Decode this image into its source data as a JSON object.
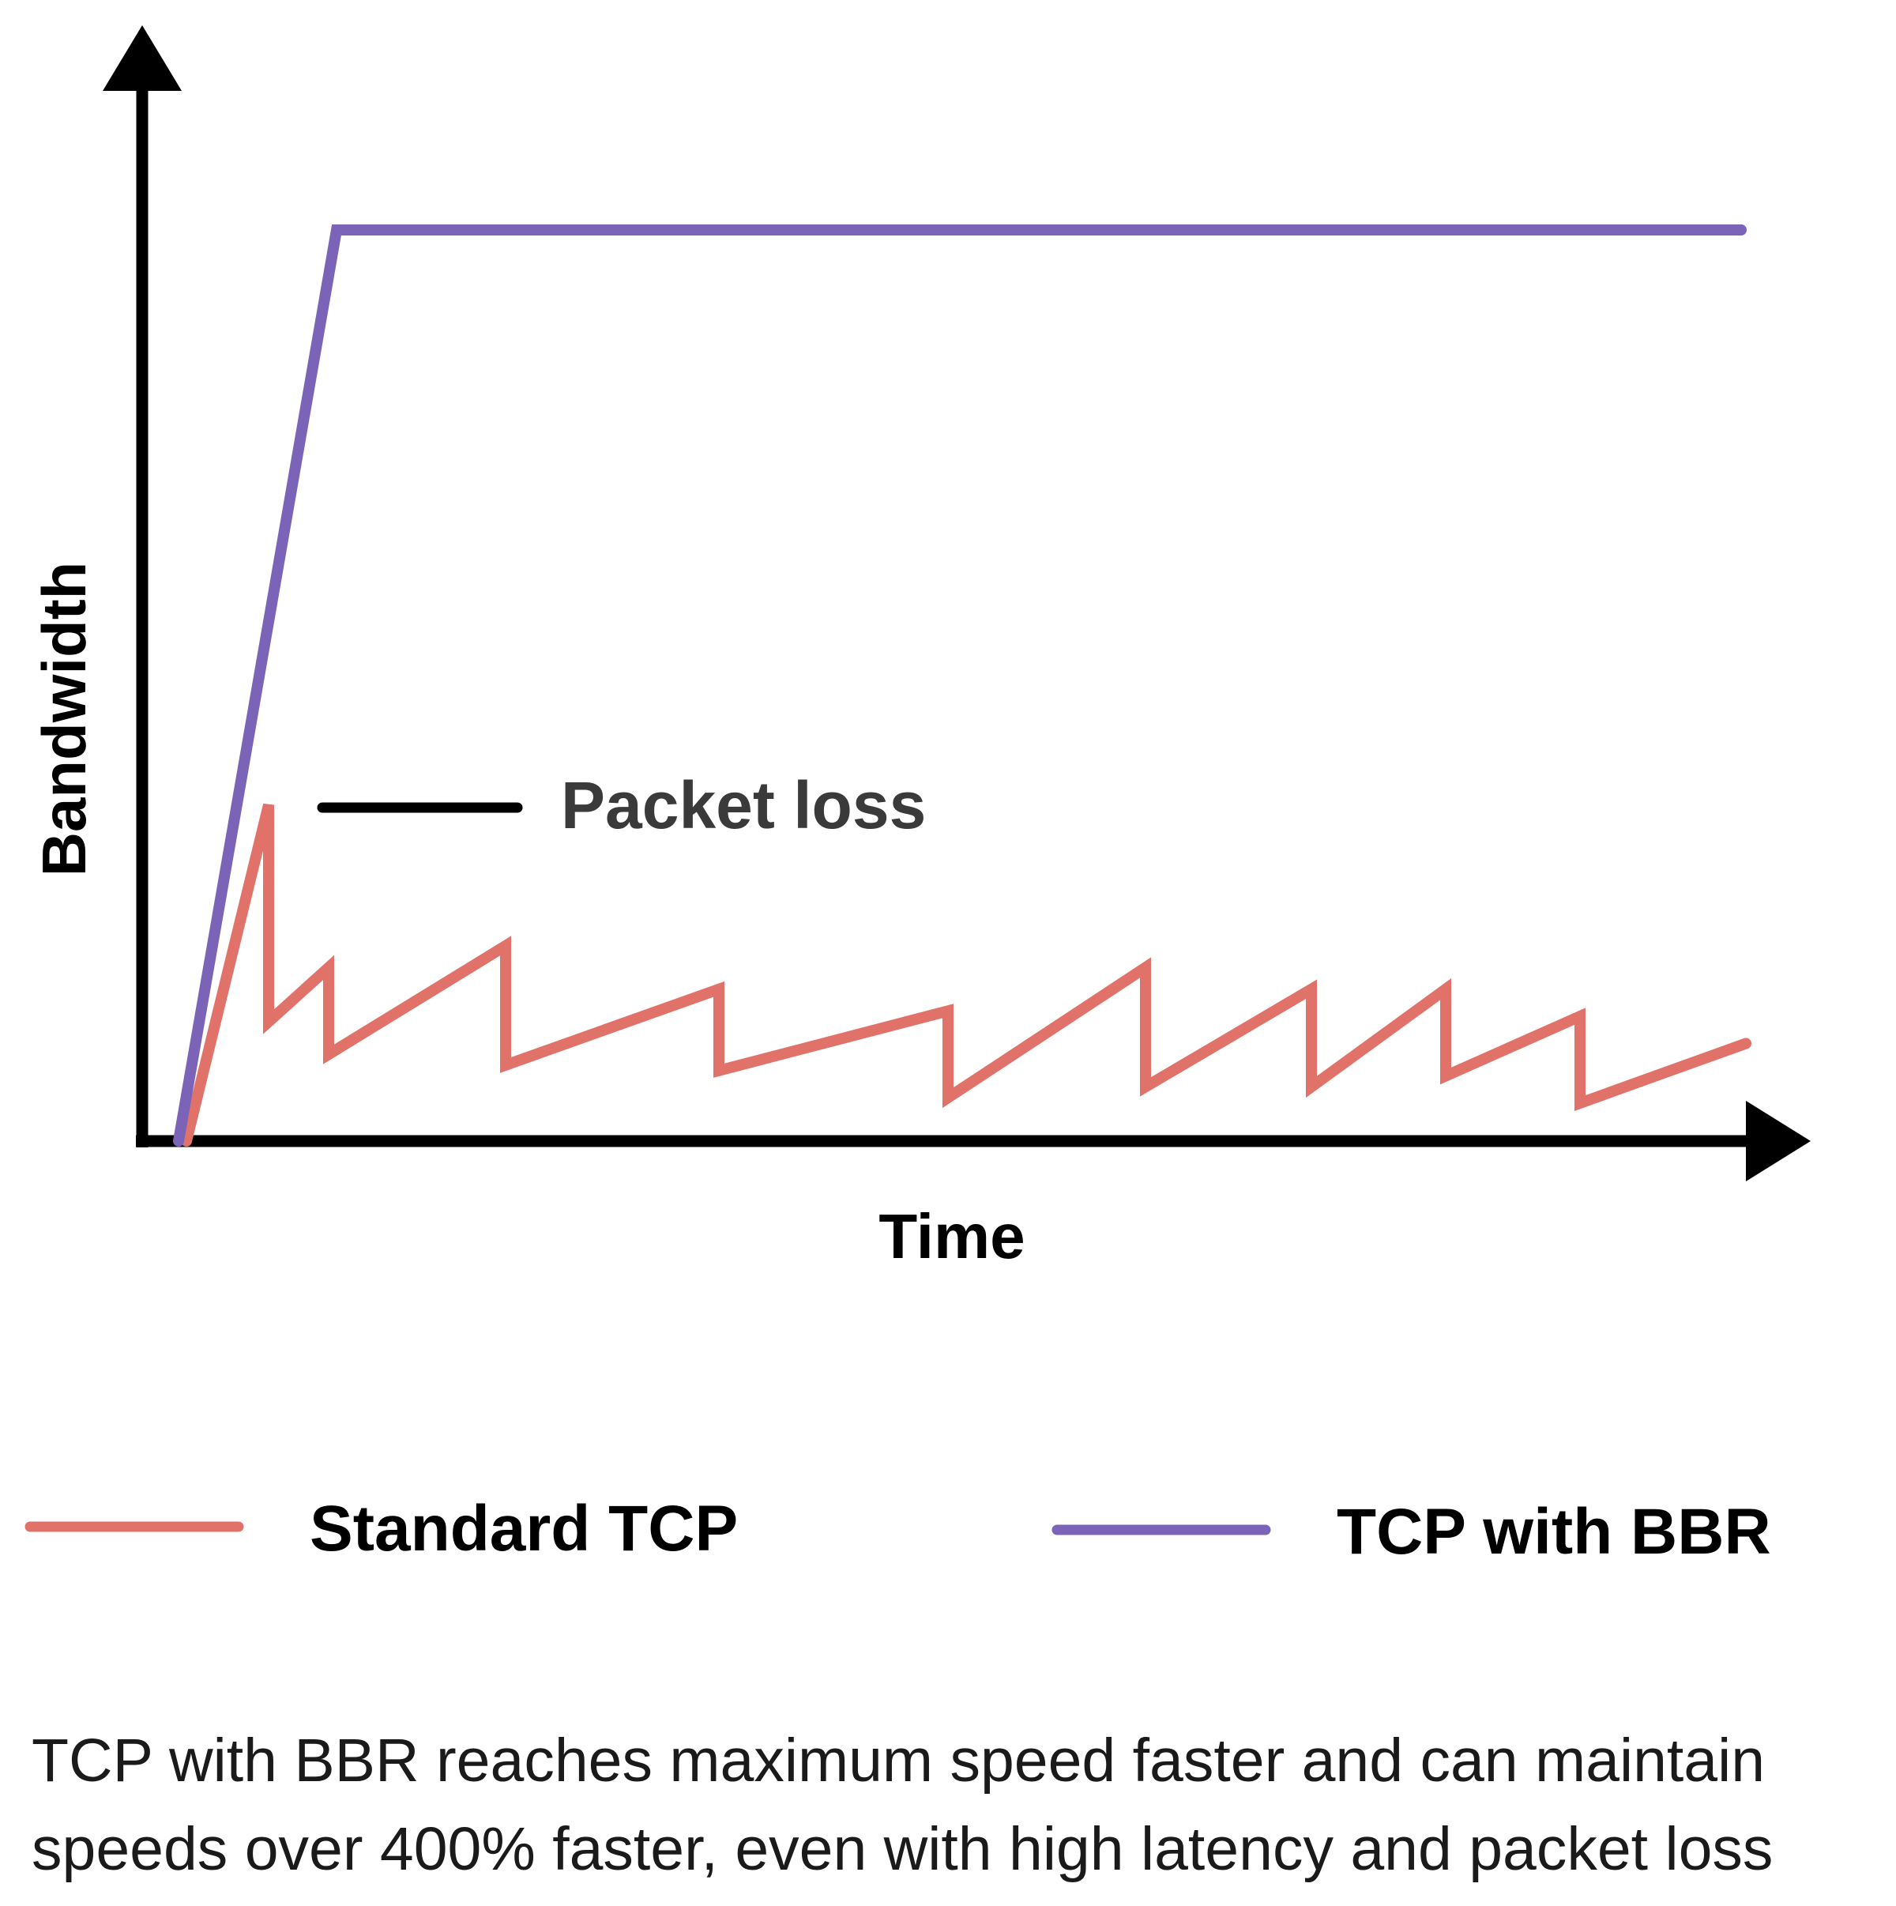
{
  "chart_data": {
    "type": "line",
    "xlabel": "Time",
    "ylabel": "Bandwidth",
    "xlim": [
      0,
      100
    ],
    "ylim": [
      0,
      100
    ],
    "grid": false,
    "legend_position": "bottom",
    "annotation": {
      "text": "Packet loss"
    },
    "series": [
      {
        "name": "Standard TCP",
        "color": "#e07269",
        "x": [
          0.8,
          6.0,
          6.0,
          9.8,
          9.8,
          21.0,
          21.0,
          34.5,
          34.5,
          49.0,
          49.0,
          61.5,
          61.5,
          72.0,
          72.0,
          80.5,
          80.5,
          89.0,
          89.0,
          99.5
        ],
        "y": [
          0.0,
          31.0,
          11.0,
          16.0,
          8.0,
          18.0,
          7.0,
          14.0,
          6.5,
          12.0,
          4.0,
          16.0,
          5.0,
          14.0,
          5.0,
          14.0,
          6.0,
          11.5,
          3.5,
          9.0
        ]
      },
      {
        "name": "TCP with BBR",
        "color": "#7b63b8",
        "x": [
          0.3,
          10.3,
          99.2
        ],
        "y": [
          0.0,
          84.0,
          84.0
        ]
      }
    ]
  },
  "caption": "TCP with BBR reaches maximum speed faster and can maintain speeds over 400% faster, even with high latency and packet loss",
  "axis_color": "#000000",
  "marker_color": "#000000"
}
